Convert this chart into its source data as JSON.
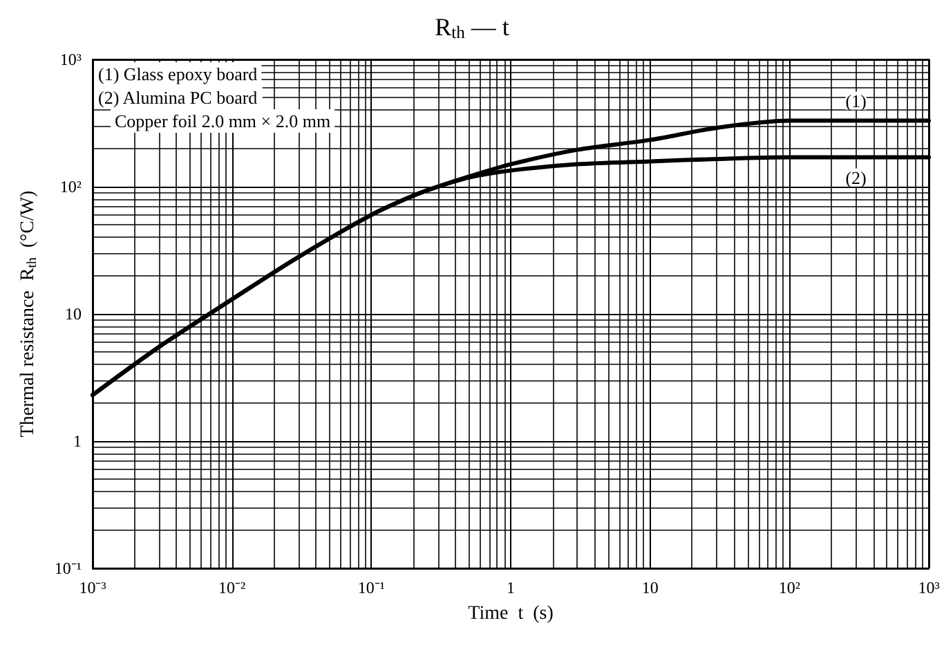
{
  "chart_data": {
    "type": "line",
    "title": "R$_{th}$ — t",
    "xlabel": "Time  t  (s)",
    "ylabel": "Thermal resistance  R$_{th}$  (°C/W)",
    "log": "xy",
    "grid": true,
    "legend": false,
    "marker": "none",
    "line_style": "solid",
    "xlim": [
      0.001,
      1000
    ],
    "ylim": [
      0.1,
      1000
    ],
    "xticks": [
      {
        "value": 0.001,
        "label": "10⁻³"
      },
      {
        "value": 0.01,
        "label": "10⁻²"
      },
      {
        "value": 0.1,
        "label": "10⁻¹"
      },
      1,
      10,
      {
        "value": 100,
        "label": "10²"
      },
      {
        "value": 1000,
        "label": "10³"
      }
    ],
    "yticks": [
      {
        "value": 0.1,
        "label": "10⁻¹"
      },
      1,
      10,
      {
        "value": 100,
        "label": "10²"
      },
      {
        "value": 1000,
        "label": "10³"
      }
    ],
    "x": [
      0.001,
      0.003,
      0.01,
      0.03,
      0.1,
      0.2,
      0.3,
      0.5,
      1,
      3,
      10,
      30,
      100,
      300,
      1000
    ],
    "series": [
      {
        "name": "(1)",
        "color": "#000000",
        "values": [
          2.3,
          5.5,
          13,
          28,
          60,
          85,
          100,
          120,
          150,
          195,
          233,
          290,
          330,
          330,
          330
        ]
      },
      {
        "name": "(2)",
        "color": "#000000",
        "values": [
          2.3,
          5.5,
          13,
          28,
          60,
          85,
          100,
          118,
          134,
          150,
          158,
          165,
          170,
          170,
          170
        ]
      }
    ],
    "annotations": [
      "(1) Glass epoxy board",
      "(2) Alumina PC board",
      "Copper foil 2.0 mm × 2.0 mm"
    ]
  }
}
